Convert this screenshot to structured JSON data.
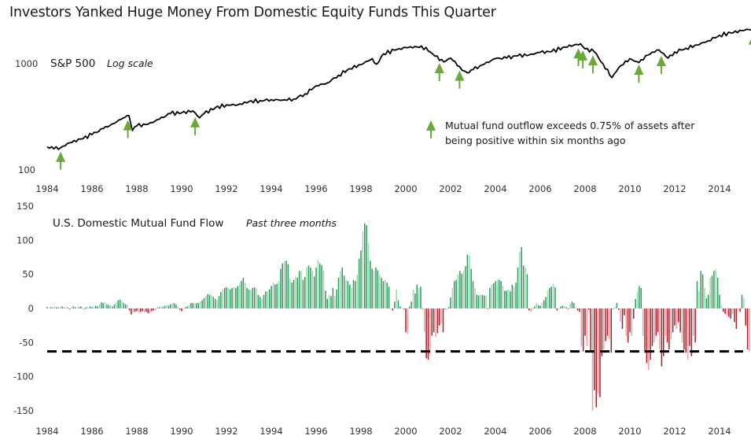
{
  "title": "Investors Yanked Huge Money From Domestic Equity Funds This Quarter",
  "chart_data": [
    {
      "type": "line",
      "title": "S&P 500",
      "subtitle": "Log scale",
      "yscale": "log",
      "ylim": [
        100,
        2500
      ],
      "xlim": [
        1984,
        2015.6
      ],
      "y_ticks": [
        {
          "value": 100,
          "label": "100"
        },
        {
          "value": 1000,
          "label": "1000"
        }
      ],
      "x_ticks": [
        "1984",
        "1986",
        "1988",
        "1990",
        "1992",
        "1994",
        "1996",
        "1998",
        "2000",
        "2002",
        "2004",
        "2006",
        "2008",
        "2010",
        "2012",
        "2014"
      ],
      "line_color": "#000000",
      "series": [
        {
          "name": "S&P 500",
          "x": [
            1984.0,
            1984.3,
            1984.6,
            1985.0,
            1985.5,
            1986.0,
            1986.5,
            1987.0,
            1987.3,
            1987.65,
            1987.8,
            1988.0,
            1988.5,
            1989.0,
            1989.5,
            1990.0,
            1990.5,
            1990.8,
            1991.0,
            1991.5,
            1992.0,
            1992.5,
            1993.0,
            1993.5,
            1994.0,
            1994.5,
            1995.0,
            1995.5,
            1996.0,
            1996.5,
            1997.0,
            1997.5,
            1998.0,
            1998.5,
            1998.7,
            1999.0,
            1999.5,
            2000.0,
            2000.5,
            2000.7,
            2001.0,
            2001.3,
            2001.7,
            2002.0,
            2002.4,
            2002.75,
            2003.0,
            2003.5,
            2004.0,
            2004.5,
            2005.0,
            2005.5,
            2006.0,
            2006.5,
            2007.0,
            2007.5,
            2007.8,
            2008.0,
            2008.4,
            2008.8,
            2009.2,
            2009.5,
            2010.0,
            2010.3,
            2010.5,
            2011.0,
            2011.3,
            2011.7,
            2012.0,
            2012.5,
            2013.0,
            2013.5,
            2014.0,
            2014.5,
            2015.0,
            2015.3,
            2015.5
          ],
          "values": [
            165,
            158,
            162,
            180,
            195,
            215,
            245,
            275,
            300,
            325,
            235,
            260,
            270,
            300,
            340,
            345,
            360,
            310,
            340,
            385,
            410,
            410,
            440,
            450,
            460,
            455,
            465,
            520,
            620,
            660,
            780,
            900,
            980,
            1120,
            990,
            1240,
            1340,
            1420,
            1440,
            1470,
            1320,
            1180,
            1040,
            1130,
            940,
            820,
            880,
            990,
            1120,
            1130,
            1190,
            1210,
            1280,
            1300,
            1420,
            1500,
            1540,
            1380,
            1300,
            1000,
            740,
            920,
            1120,
            1050,
            1090,
            1290,
            1350,
            1130,
            1290,
            1400,
            1500,
            1650,
            1850,
            1950,
            2050,
            2100,
            2060
          ]
        }
      ],
      "markers": {
        "name": "Mutual fund outflow exceeds 0.75% of assets after being positive within six months ago",
        "color": "#6aa83a",
        "x": [
          1984.6,
          1987.6,
          1990.6,
          2001.5,
          2002.4,
          2007.7,
          2007.9,
          2008.35,
          2010.4,
          2011.4,
          2015.5
        ]
      },
      "legend": {
        "line1": "Mutual fund outflow exceeds 0.75% of assets after",
        "line2": "being positive within six months ago",
        "placement": "middle-right"
      }
    },
    {
      "type": "bar",
      "title": "U.S. Domestic Mutual Fund Flow",
      "subtitle": "Past three months",
      "ylim": [
        -150,
        150
      ],
      "y_ticks": [
        "150",
        "100",
        "50",
        "0",
        "-50",
        "-100",
        "-150"
      ],
      "x_ticks": [
        "1984",
        "1986",
        "1988",
        "1990",
        "1992",
        "1994",
        "1996",
        "1998",
        "2000",
        "2002",
        "2004",
        "2006",
        "2008",
        "2010",
        "2012",
        "2014"
      ],
      "x_start": 1984.0,
      "frequency": "monthly",
      "colors": {
        "positive": "#2e9a5c",
        "positive_light": "#9bd8b0",
        "negative": "#a3202a",
        "negative_light": "#e8a0a5"
      },
      "threshold": {
        "value": -63,
        "style": "dashed",
        "color": "#000000"
      },
      "values": [
        2,
        1,
        2,
        1,
        3,
        2,
        1,
        2,
        3,
        1,
        2,
        1,
        -1,
        2,
        3,
        2,
        1,
        2,
        3,
        1,
        -1,
        2,
        1,
        3,
        2,
        3,
        4,
        3,
        6,
        9,
        8,
        9,
        6,
        5,
        4,
        3,
        6,
        9,
        12,
        13,
        11,
        8,
        6,
        5,
        -3,
        -9,
        -6,
        -5,
        -4,
        -6,
        -5,
        -4,
        -6,
        -5,
        -7,
        -6,
        -4,
        -3,
        -2,
        1,
        2,
        3,
        2,
        4,
        5,
        4,
        6,
        7,
        8,
        6,
        3,
        -2,
        -4,
        -1,
        2,
        3,
        5,
        8,
        8,
        7,
        8,
        8,
        10,
        12,
        15,
        18,
        21,
        20,
        19,
        17,
        14,
        12,
        18,
        24,
        28,
        30,
        31,
        30,
        28,
        30,
        31,
        30,
        33,
        36,
        40,
        45,
        38,
        30,
        28,
        27,
        30,
        31,
        29,
        20,
        17,
        14,
        20,
        25,
        25,
        28,
        33,
        38,
        35,
        36,
        40,
        58,
        66,
        69,
        70,
        65,
        44,
        38,
        42,
        47,
        45,
        55,
        55,
        42,
        46,
        60,
        63,
        60,
        55,
        47,
        60,
        71,
        66,
        63,
        56,
        26,
        14,
        20,
        18,
        30,
        18,
        28,
        45,
        55,
        60,
        48,
        42,
        40,
        35,
        30,
        42,
        40,
        50,
        73,
        85,
        113,
        125,
        122,
        96,
        70,
        58,
        56,
        60,
        56,
        50,
        45,
        40,
        42,
        38,
        32,
        -1,
        -3,
        10,
        28,
        12,
        3,
        1,
        -1,
        -35,
        -38,
        3,
        10,
        28,
        22,
        35,
        30,
        32,
        -1,
        -34,
        -73,
        -75,
        -68,
        -40,
        -35,
        -42,
        -36,
        -25,
        -22,
        -35,
        -1,
        -1,
        2,
        16,
        30,
        40,
        42,
        50,
        55,
        51,
        55,
        62,
        79,
        77,
        58,
        40,
        30,
        20,
        19,
        20,
        20,
        19,
        19,
        -1,
        30,
        35,
        37,
        40,
        42,
        42,
        40,
        33,
        26,
        26,
        28,
        25,
        35,
        32,
        38,
        60,
        83,
        90,
        63,
        60,
        50,
        -3,
        -5,
        0,
        3,
        8,
        5,
        4,
        8,
        12,
        17,
        26,
        30,
        32,
        36,
        31,
        -3,
        -1,
        3,
        4,
        3,
        2,
        -1,
        7,
        10,
        8,
        2,
        -3,
        -5,
        -55,
        -63,
        -40,
        -55,
        -2,
        -63,
        -150,
        -120,
        -145,
        -125,
        -130,
        -70,
        -60,
        -48,
        -40,
        -45,
        -65,
        0,
        2,
        8,
        -2,
        -20,
        -30,
        -10,
        -40,
        -50,
        -35,
        -40,
        -15,
        14,
        25,
        33,
        30,
        -40,
        -65,
        -80,
        -90,
        -75,
        -55,
        -50,
        -40,
        -35,
        -60,
        -85,
        -70,
        -40,
        -50,
        -60,
        -45,
        -35,
        -25,
        -30,
        -20,
        -35,
        -50,
        -60,
        -65,
        -75,
        -55,
        -70,
        -40,
        -50,
        40,
        25,
        55,
        50,
        30,
        15,
        20,
        45,
        48,
        55,
        57,
        45,
        20,
        5,
        -5,
        -8,
        -10,
        -12,
        -15,
        -8,
        -20,
        -30,
        -3,
        -5,
        20,
        15,
        -25,
        -60,
        -63
      ]
    }
  ]
}
